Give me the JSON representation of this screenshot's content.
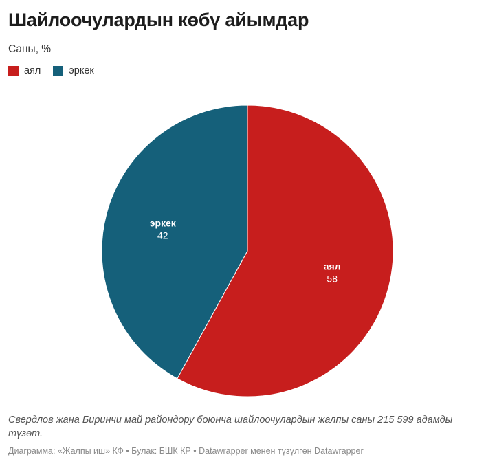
{
  "chart_data": {
    "type": "pie",
    "title": "Шайлоочулардын көбү айымдар",
    "subtitle": "Саны, %",
    "slices": [
      {
        "label": "аял",
        "value": 58,
        "color": "#c71e1d"
      },
      {
        "label": "эркек",
        "value": 42,
        "color": "#15607a"
      }
    ],
    "legend_placement": "top-left"
  },
  "notes": "Свердлов жана Биринчи май райондору боюнча шайлоочулардын жалпы саны 215 599 адамды түзөт.",
  "credit": "Диаграмма: «Жалпы иш» КФ • Булак: БШК КР • Datawrapper менен түзүлгөн Datawrapper"
}
